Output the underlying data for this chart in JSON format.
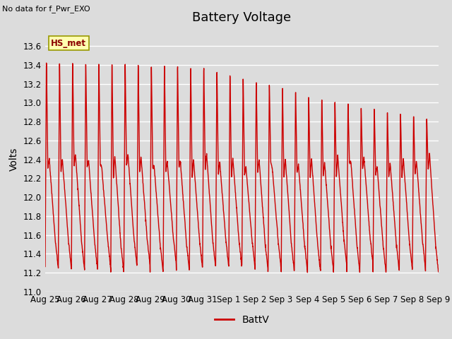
{
  "title": "Battery Voltage",
  "top_left_text": "No data for f_Pwr_EXO",
  "ylabel": "Volts",
  "legend_label": "BattV",
  "line_color": "#cc0000",
  "bg_color": "#dcdcdc",
  "ylim": [
    11.0,
    13.8
  ],
  "yticks": [
    11.0,
    11.2,
    11.4,
    11.6,
    11.8,
    12.0,
    12.2,
    12.4,
    12.6,
    12.8,
    13.0,
    13.2,
    13.4,
    13.6
  ],
  "xtick_labels": [
    "Aug 25",
    "Aug 26",
    "Aug 27",
    "Aug 28",
    "Aug 29",
    "Aug 30",
    "Aug 31",
    "Sep 1",
    "Sep 2",
    "Sep 3",
    "Sep 4",
    "Sep 5",
    "Sep 6",
    "Sep 7",
    "Sep 8",
    "Sep 9"
  ],
  "title_fontsize": 13,
  "axis_label_fontsize": 10,
  "tick_fontsize": 8.5,
  "legend_fontsize": 10
}
